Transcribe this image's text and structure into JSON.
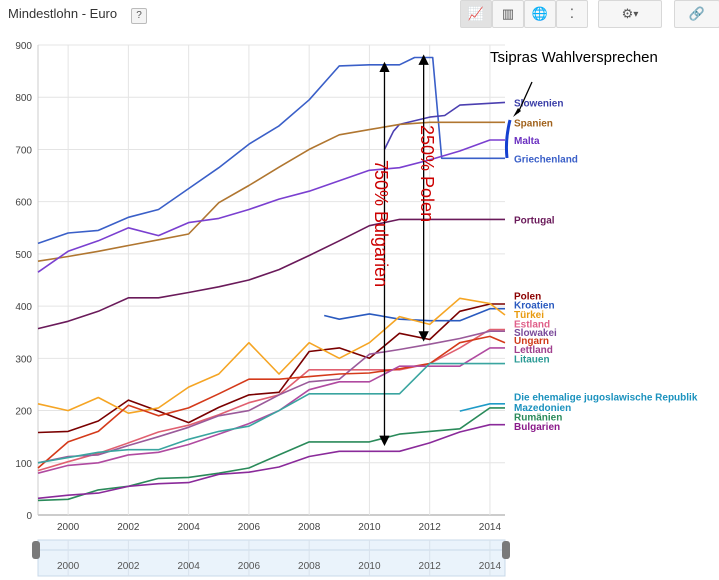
{
  "header": {
    "title": "Mindestlohn - Euro",
    "help_label": "?",
    "buttons": [
      {
        "name": "line-chart-button",
        "icon": "line-chart-icon",
        "glyph": "📈"
      },
      {
        "name": "bar-chart-button",
        "icon": "bar-chart-icon",
        "glyph": "▥"
      },
      {
        "name": "map-button",
        "icon": "globe-icon",
        "glyph": "🌐"
      },
      {
        "name": "scatter-button",
        "icon": "scatter-chart-icon",
        "glyph": "⁚"
      },
      {
        "name": "settings-button",
        "icon": "gear-icon",
        "glyph": "⚙"
      },
      {
        "name": "link-button",
        "icon": "link-icon",
        "glyph": "🔗"
      }
    ]
  },
  "chart_data": {
    "type": "line",
    "title": "Mindestlohn - Euro",
    "xlabel": "",
    "ylabel": "",
    "xlim": [
      1999.0,
      2014.5
    ],
    "ylim": [
      0,
      900
    ],
    "yticks": [
      0,
      100,
      200,
      300,
      400,
      500,
      600,
      700,
      800,
      900
    ],
    "xticks": [
      "2000",
      "2002",
      "2004",
      "2006",
      "2008",
      "2010",
      "2012",
      "2014"
    ],
    "grid": true,
    "series": [
      {
        "name": "Griechenland",
        "color": "#3a5fc8",
        "label_color": "#3a5fc8",
        "label_y": 683,
        "points": [
          [
            1999,
            520
          ],
          [
            2000,
            540
          ],
          [
            2001,
            545
          ],
          [
            2002,
            570
          ],
          [
            2003,
            585
          ],
          [
            2004,
            625
          ],
          [
            2005,
            665
          ],
          [
            2006,
            710
          ],
          [
            2007,
            745
          ],
          [
            2008,
            795
          ],
          [
            2009,
            860
          ],
          [
            2010,
            862
          ],
          [
            2011,
            862
          ],
          [
            2011.5,
            876
          ],
          [
            2012.1,
            876
          ],
          [
            2012.4,
            683
          ],
          [
            2014.5,
            683
          ]
        ]
      },
      {
        "name": "Slowenien",
        "color": "#4b3fb0",
        "label_color": "#3b3fa8",
        "label_y": 790,
        "points": [
          [
            2010.5,
            700
          ],
          [
            2010.8,
            735
          ],
          [
            2011,
            748
          ],
          [
            2012,
            762
          ],
          [
            2012.5,
            765
          ],
          [
            2013,
            785
          ],
          [
            2014.5,
            790
          ]
        ]
      },
      {
        "name": "Spanien",
        "color": "#b07630",
        "label_color": "#a0621c",
        "label_y": 752,
        "points": [
          [
            1999,
            486
          ],
          [
            2000,
            495
          ],
          [
            2001,
            505
          ],
          [
            2002,
            516
          ],
          [
            2003,
            527
          ],
          [
            2004,
            538
          ],
          [
            2005,
            598
          ],
          [
            2006,
            631
          ],
          [
            2007,
            666
          ],
          [
            2008,
            700
          ],
          [
            2009,
            728
          ],
          [
            2010,
            738
          ],
          [
            2011,
            748
          ],
          [
            2012,
            752
          ],
          [
            2013,
            752
          ],
          [
            2014.5,
            752
          ]
        ]
      },
      {
        "name": "Malta",
        "color": "#7a3fd0",
        "label_color": "#6a2fc0",
        "label_y": 718,
        "points": [
          [
            1999,
            465
          ],
          [
            2000,
            505
          ],
          [
            2001,
            525
          ],
          [
            2002,
            550
          ],
          [
            2003,
            535
          ],
          [
            2004,
            560
          ],
          [
            2005,
            568
          ],
          [
            2006,
            585
          ],
          [
            2007,
            605
          ],
          [
            2008,
            620
          ],
          [
            2009,
            640
          ],
          [
            2010,
            660
          ],
          [
            2011,
            665
          ],
          [
            2012,
            680
          ],
          [
            2013,
            697
          ],
          [
            2014,
            718
          ],
          [
            2014.5,
            718
          ]
        ]
      },
      {
        "name": "Portugal",
        "color": "#6a1a5a",
        "label_color": "#6a1a5a",
        "label_y": 566,
        "points": [
          [
            1999,
            357
          ],
          [
            2000,
            371
          ],
          [
            2001,
            390
          ],
          [
            2002,
            416
          ],
          [
            2003,
            416
          ],
          [
            2004,
            426
          ],
          [
            2005,
            437
          ],
          [
            2006,
            450
          ],
          [
            2007,
            470
          ],
          [
            2008,
            497
          ],
          [
            2009,
            525
          ],
          [
            2010,
            554
          ],
          [
            2011,
            566
          ],
          [
            2012,
            566
          ],
          [
            2013,
            566
          ],
          [
            2014.5,
            566
          ]
        ]
      },
      {
        "name": "Polen",
        "color": "#7a0000",
        "label_color": "#8b0000",
        "label_y": 404,
        "points": [
          [
            1999,
            158
          ],
          [
            2000,
            160
          ],
          [
            2001,
            180
          ],
          [
            2002,
            220
          ],
          [
            2003,
            199
          ],
          [
            2004,
            177
          ],
          [
            2005,
            206
          ],
          [
            2006,
            230
          ],
          [
            2007,
            235
          ],
          [
            2008,
            313
          ],
          [
            2009,
            320
          ],
          [
            2010,
            300
          ],
          [
            2011,
            348
          ],
          [
            2012,
            336
          ],
          [
            2013,
            390
          ],
          [
            2014,
            404
          ],
          [
            2014.5,
            404
          ]
        ]
      },
      {
        "name": "Kroatien",
        "color": "#2a5abf",
        "label_color": "#2a5abf",
        "label_y": 395,
        "points": [
          [
            2008.5,
            382
          ],
          [
            2009,
            375
          ],
          [
            2010,
            385
          ],
          [
            2011,
            375
          ],
          [
            2012,
            372
          ],
          [
            2013,
            372
          ],
          [
            2014,
            395
          ],
          [
            2014.5,
            395
          ]
        ]
      },
      {
        "name": "Türkei",
        "color": "#f5a524",
        "label_color": "#e89b10",
        "label_y": 383,
        "points": [
          [
            1999,
            213
          ],
          [
            2000,
            200
          ],
          [
            2001,
            225
          ],
          [
            2002,
            195
          ],
          [
            2003,
            205
          ],
          [
            2004,
            245
          ],
          [
            2005,
            270
          ],
          [
            2006,
            330
          ],
          [
            2007,
            270
          ],
          [
            2008,
            330
          ],
          [
            2009,
            300
          ],
          [
            2010,
            330
          ],
          [
            2011,
            380
          ],
          [
            2012,
            365
          ],
          [
            2013,
            415
          ],
          [
            2014,
            405
          ],
          [
            2014.5,
            383
          ]
        ]
      },
      {
        "name": "Estland",
        "color": "#e06070",
        "label_color": "#e0608a",
        "label_y": 355,
        "points": [
          [
            1999,
            85
          ],
          [
            2000,
            102
          ],
          [
            2001,
            118
          ],
          [
            2002,
            138
          ],
          [
            2003,
            159
          ],
          [
            2004,
            172
          ],
          [
            2005,
            192
          ],
          [
            2006,
            215
          ],
          [
            2007,
            230
          ],
          [
            2008,
            278
          ],
          [
            2009,
            278
          ],
          [
            2010,
            278
          ],
          [
            2011,
            278
          ],
          [
            2012,
            290
          ],
          [
            2013,
            320
          ],
          [
            2014,
            355
          ],
          [
            2014.5,
            355
          ]
        ]
      },
      {
        "name": "Slowakei",
        "color": "#9a5a9a",
        "label_color": "#7a4a9a",
        "label_y": 352,
        "points": [
          [
            1999,
            100
          ],
          [
            2000,
            112
          ],
          [
            2001,
            115
          ],
          [
            2002,
            133
          ],
          [
            2003,
            150
          ],
          [
            2004,
            168
          ],
          [
            2005,
            190
          ],
          [
            2006,
            200
          ],
          [
            2007,
            230
          ],
          [
            2008,
            255
          ],
          [
            2009,
            260
          ],
          [
            2010,
            308
          ],
          [
            2011,
            317
          ],
          [
            2012,
            327
          ],
          [
            2013,
            338
          ],
          [
            2014,
            352
          ],
          [
            2014.5,
            352
          ]
        ]
      },
      {
        "name": "Ungarn",
        "color": "#d43a1a",
        "label_color": "#d03a1a",
        "label_y": 330,
        "points": [
          [
            1999,
            90
          ],
          [
            2000,
            140
          ],
          [
            2001,
            160
          ],
          [
            2002,
            210
          ],
          [
            2003,
            190
          ],
          [
            2004,
            205
          ],
          [
            2005,
            232
          ],
          [
            2006,
            260
          ],
          [
            2007,
            260
          ],
          [
            2008,
            265
          ],
          [
            2009,
            270
          ],
          [
            2010,
            272
          ],
          [
            2011,
            280
          ],
          [
            2012,
            290
          ],
          [
            2013,
            330
          ],
          [
            2014,
            342
          ],
          [
            2014.5,
            330
          ]
        ]
      },
      {
        "name": "Lettland",
        "color": "#b04aa0",
        "label_color": "#a0408e",
        "label_y": 320,
        "points": [
          [
            1999,
            80
          ],
          [
            2000,
            95
          ],
          [
            2001,
            100
          ],
          [
            2002,
            115
          ],
          [
            2003,
            120
          ],
          [
            2004,
            135
          ],
          [
            2005,
            155
          ],
          [
            2006,
            175
          ],
          [
            2007,
            200
          ],
          [
            2008,
            240
          ],
          [
            2009,
            255
          ],
          [
            2010,
            255
          ],
          [
            2011,
            285
          ],
          [
            2012,
            285
          ],
          [
            2013,
            285
          ],
          [
            2014,
            320
          ],
          [
            2014.5,
            320
          ]
        ]
      },
      {
        "name": "Litauen",
        "color": "#3aa5a0",
        "label_color": "#2a9a95",
        "label_y": 289,
        "points": [
          [
            1999,
            100
          ],
          [
            2000,
            110
          ],
          [
            2001,
            120
          ],
          [
            2002,
            125
          ],
          [
            2003,
            125
          ],
          [
            2004,
            145
          ],
          [
            2005,
            160
          ],
          [
            2006,
            170
          ],
          [
            2007,
            200
          ],
          [
            2008,
            232
          ],
          [
            2009,
            232
          ],
          [
            2010,
            232
          ],
          [
            2011,
            232
          ],
          [
            2012,
            290
          ],
          [
            2013,
            290
          ],
          [
            2014.5,
            290
          ]
        ]
      },
      {
        "name": "Die ehemalige jugoslawische Republik Mazedonien",
        "color": "#1f9bc7",
        "label_color": "#1b92be",
        "label_y": 213,
        "points": [
          [
            2013,
            199
          ],
          [
            2014,
            213
          ],
          [
            2014.5,
            213
          ]
        ]
      },
      {
        "name": "Rumänien",
        "color": "#2a8a5a",
        "label_color": "#2a8a5a",
        "label_y": 205,
        "points": [
          [
            1999,
            28
          ],
          [
            2000,
            30
          ],
          [
            2001,
            48
          ],
          [
            2002,
            55
          ],
          [
            2003,
            70
          ],
          [
            2004,
            72
          ],
          [
            2005,
            80
          ],
          [
            2006,
            90
          ],
          [
            2007,
            115
          ],
          [
            2008,
            140
          ],
          [
            2009,
            140
          ],
          [
            2010,
            140
          ],
          [
            2011,
            155
          ],
          [
            2012,
            160
          ],
          [
            2013,
            165
          ],
          [
            2014,
            205
          ],
          [
            2014.5,
            205
          ]
        ]
      },
      {
        "name": "Bulgarien",
        "color": "#8a2a9a",
        "label_color": "#8a1a8a",
        "label_y": 173,
        "points": [
          [
            1999,
            32
          ],
          [
            2000,
            38
          ],
          [
            2001,
            42
          ],
          [
            2002,
            55
          ],
          [
            2003,
            60
          ],
          [
            2004,
            62
          ],
          [
            2005,
            78
          ],
          [
            2006,
            82
          ],
          [
            2007,
            92
          ],
          [
            2008,
            112
          ],
          [
            2009,
            122
          ],
          [
            2010,
            122
          ],
          [
            2011,
            122
          ],
          [
            2012,
            138
          ],
          [
            2013,
            159
          ],
          [
            2014,
            173
          ],
          [
            2014.5,
            173
          ]
        ]
      }
    ],
    "label_display_y": {
      "Slowenien": 790,
      "Spanien": 752,
      "Malta": 718,
      "Griechenland": 683,
      "Portugal": 566,
      "Polen": 420,
      "Kroatien": 403,
      "Türkei": 385,
      "Estland": 367,
      "Slowakei": 350,
      "Ungarn": 335,
      "Lettland": 318,
      "Litauen": 300,
      "Die ehemalige jugoslawische Republik": 227,
      "Mazedonien": 207,
      "Rumänien": 189,
      "Bulgarien": 170
    },
    "annotations": [
      {
        "text": "Tsipras Wahlversprechen",
        "color": "#000000"
      },
      {
        "text": "250% Polen",
        "color": "#cc0000"
      },
      {
        "text": "750% Bulgarien",
        "color": "#cc0000"
      }
    ],
    "arrows": [
      {
        "x": 2010.5,
        "y_from": 142,
        "y_to": 858
      },
      {
        "x": 2011.8,
        "y_from": 342,
        "y_to": 872
      }
    ]
  },
  "slider": {
    "ticks": [
      "2000",
      "2002",
      "2004",
      "2006",
      "2008",
      "2010",
      "2012",
      "2014"
    ]
  }
}
